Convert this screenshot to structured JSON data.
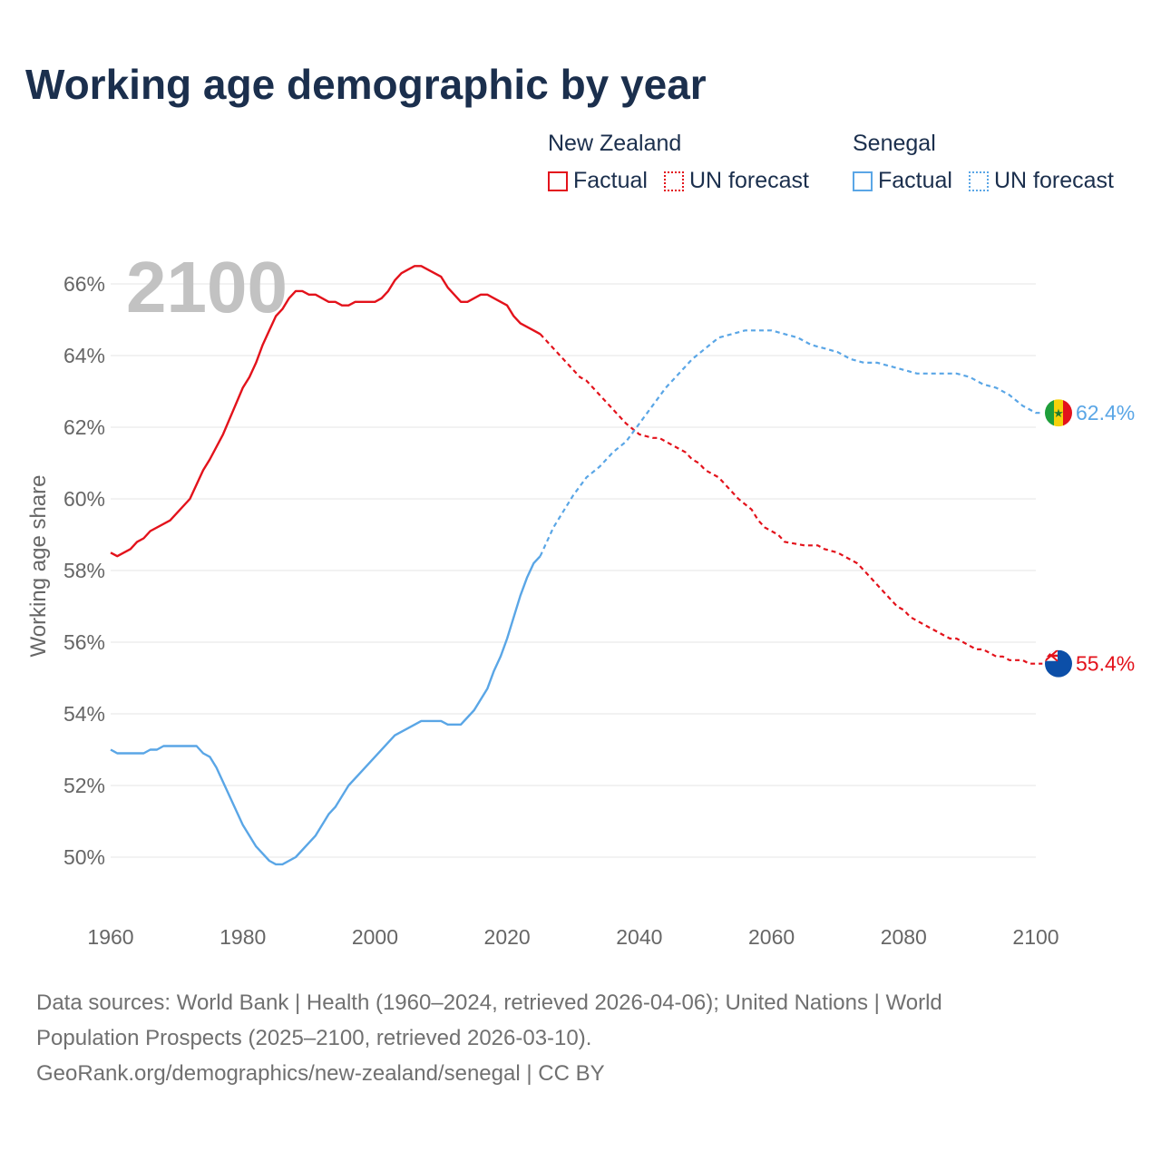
{
  "title": "Working age demographic by year",
  "legend": {
    "groups": [
      {
        "country": "New Zealand",
        "factual": "Factual",
        "forecast": "UN forecast",
        "color": "#e3121b"
      },
      {
        "country": "Senegal",
        "factual": "Factual",
        "forecast": "UN forecast",
        "color": "#5aa6e6"
      }
    ]
  },
  "footer": {
    "line1": "Data sources: World Bank | Health (1960–2024, retrieved 2026-04-06); United Nations | World",
    "line2": "Population Prospects (2025–2100, retrieved 2026-03-10).",
    "line3": "GeoRank.org/demographics/new-zealand/senegal | CC BY"
  },
  "chart_data": {
    "type": "line",
    "title": "Working age demographic by year",
    "ylabel": "Working age share",
    "xlabel": "",
    "year_watermark": "2100",
    "xlim": [
      1960,
      2100
    ],
    "ylim": [
      48,
      66.5
    ],
    "x_ticks": [
      1960,
      1980,
      2000,
      2020,
      2040,
      2060,
      2080,
      2100
    ],
    "x_tick_labels": [
      "1960",
      "1980",
      "2000",
      "2020",
      "2040",
      "2060",
      "2080",
      "2100"
    ],
    "y_ticks": [
      50,
      52,
      54,
      56,
      58,
      60,
      62,
      64,
      66
    ],
    "y_tick_labels": [
      "50%",
      "52%",
      "54%",
      "56%",
      "58%",
      "60%",
      "62%",
      "64%",
      "66%"
    ],
    "forecast_start": 2025,
    "series": [
      {
        "name": "New Zealand",
        "color": "#e3121b",
        "end_label": "55.4%",
        "flag": "nz",
        "points": [
          [
            1960,
            58.5
          ],
          [
            1961,
            58.4
          ],
          [
            1963,
            58.6
          ],
          [
            1964,
            58.8
          ],
          [
            1965,
            58.9
          ],
          [
            1966,
            59.1
          ],
          [
            1969,
            59.4
          ],
          [
            1972,
            60.0
          ],
          [
            1974,
            60.8
          ],
          [
            1975,
            61.1
          ],
          [
            1977,
            61.8
          ],
          [
            1980,
            63.1
          ],
          [
            1981,
            63.4
          ],
          [
            1982,
            63.8
          ],
          [
            1983,
            64.3
          ],
          [
            1984,
            64.7
          ],
          [
            1985,
            65.1
          ],
          [
            1986,
            65.3
          ],
          [
            1987,
            65.6
          ],
          [
            1988,
            65.8
          ],
          [
            1989,
            65.8
          ],
          [
            1990,
            65.7
          ],
          [
            1991,
            65.7
          ],
          [
            1993,
            65.5
          ],
          [
            1994,
            65.5
          ],
          [
            1995,
            65.4
          ],
          [
            1996,
            65.4
          ],
          [
            1997,
            65.5
          ],
          [
            2000,
            65.5
          ],
          [
            2001,
            65.6
          ],
          [
            2002,
            65.8
          ],
          [
            2003,
            66.1
          ],
          [
            2004,
            66.3
          ],
          [
            2005,
            66.4
          ],
          [
            2006,
            66.5
          ],
          [
            2007,
            66.5
          ],
          [
            2010,
            66.2
          ],
          [
            2011,
            65.9
          ],
          [
            2013,
            65.5
          ],
          [
            2014,
            65.5
          ],
          [
            2016,
            65.7
          ],
          [
            2017,
            65.7
          ],
          [
            2018,
            65.6
          ],
          [
            2020,
            65.4
          ],
          [
            2021,
            65.1
          ],
          [
            2022,
            64.9
          ],
          [
            2024,
            64.7
          ],
          [
            2025,
            64.6
          ],
          [
            2028,
            64.0
          ],
          [
            2030,
            63.6
          ],
          [
            2031,
            63.4
          ],
          [
            2032,
            63.3
          ],
          [
            2035,
            62.7
          ],
          [
            2038,
            62.1
          ],
          [
            2040,
            61.8
          ],
          [
            2042,
            61.7
          ],
          [
            2043,
            61.7
          ],
          [
            2045,
            61.5
          ],
          [
            2047,
            61.3
          ],
          [
            2048,
            61.1
          ],
          [
            2049,
            61.0
          ],
          [
            2050,
            60.8
          ],
          [
            2052,
            60.6
          ],
          [
            2055,
            60.0
          ],
          [
            2057,
            59.7
          ],
          [
            2058,
            59.4
          ],
          [
            2059,
            59.2
          ],
          [
            2061,
            59.0
          ],
          [
            2062,
            58.8
          ],
          [
            2065,
            58.7
          ],
          [
            2067,
            58.7
          ],
          [
            2068,
            58.6
          ],
          [
            2070,
            58.5
          ],
          [
            2073,
            58.2
          ],
          [
            2075,
            57.8
          ],
          [
            2077,
            57.4
          ],
          [
            2079,
            57.0
          ],
          [
            2080,
            56.9
          ],
          [
            2081,
            56.7
          ],
          [
            2083,
            56.5
          ],
          [
            2086,
            56.2
          ],
          [
            2087,
            56.1
          ],
          [
            2088,
            56.1
          ],
          [
            2090,
            55.9
          ],
          [
            2091,
            55.8
          ],
          [
            2092,
            55.8
          ],
          [
            2093,
            55.7
          ],
          [
            2094,
            55.6
          ],
          [
            2095,
            55.6
          ],
          [
            2096,
            55.5
          ],
          [
            2098,
            55.5
          ],
          [
            2099,
            55.4
          ],
          [
            2100,
            55.4
          ],
          [
            2101,
            55.4
          ]
        ]
      },
      {
        "name": "Senegal",
        "color": "#5aa6e6",
        "end_label": "62.4%",
        "flag": "sn",
        "points": [
          [
            1960,
            53.0
          ],
          [
            1961,
            52.9
          ],
          [
            1965,
            52.9
          ],
          [
            1966,
            53.0
          ],
          [
            1967,
            53.0
          ],
          [
            1968,
            53.1
          ],
          [
            1973,
            53.1
          ],
          [
            1974,
            52.9
          ],
          [
            1975,
            52.8
          ],
          [
            1976,
            52.5
          ],
          [
            1978,
            51.7
          ],
          [
            1980,
            50.9
          ],
          [
            1982,
            50.3
          ],
          [
            1984,
            49.9
          ],
          [
            1985,
            49.8
          ],
          [
            1986,
            49.8
          ],
          [
            1988,
            50.0
          ],
          [
            1990,
            50.4
          ],
          [
            1991,
            50.6
          ],
          [
            1993,
            51.2
          ],
          [
            1994,
            51.4
          ],
          [
            1996,
            52.0
          ],
          [
            1998,
            52.4
          ],
          [
            2000,
            52.8
          ],
          [
            2002,
            53.2
          ],
          [
            2003,
            53.4
          ],
          [
            2005,
            53.6
          ],
          [
            2007,
            53.8
          ],
          [
            2010,
            53.8
          ],
          [
            2011,
            53.7
          ],
          [
            2013,
            53.7
          ],
          [
            2015,
            54.1
          ],
          [
            2017,
            54.7
          ],
          [
            2018,
            55.2
          ],
          [
            2019,
            55.6
          ],
          [
            2020,
            56.1
          ],
          [
            2022,
            57.3
          ],
          [
            2023,
            57.8
          ],
          [
            2024,
            58.2
          ],
          [
            2025,
            58.4
          ],
          [
            2027,
            59.2
          ],
          [
            2029,
            59.8
          ],
          [
            2030,
            60.1
          ],
          [
            2032,
            60.6
          ],
          [
            2034,
            60.9
          ],
          [
            2036,
            61.3
          ],
          [
            2038,
            61.6
          ],
          [
            2040,
            62.1
          ],
          [
            2042,
            62.6
          ],
          [
            2044,
            63.1
          ],
          [
            2046,
            63.5
          ],
          [
            2048,
            63.9
          ],
          [
            2050,
            64.2
          ],
          [
            2052,
            64.5
          ],
          [
            2054,
            64.6
          ],
          [
            2056,
            64.7
          ],
          [
            2060,
            64.7
          ],
          [
            2062,
            64.6
          ],
          [
            2064,
            64.5
          ],
          [
            2066,
            64.3
          ],
          [
            2068,
            64.2
          ],
          [
            2070,
            64.1
          ],
          [
            2072,
            63.9
          ],
          [
            2074,
            63.8
          ],
          [
            2076,
            63.8
          ],
          [
            2078,
            63.7
          ],
          [
            2080,
            63.6
          ],
          [
            2082,
            63.5
          ],
          [
            2086,
            63.5
          ],
          [
            2088,
            63.5
          ],
          [
            2090,
            63.4
          ],
          [
            2092,
            63.2
          ],
          [
            2094,
            63.1
          ],
          [
            2096,
            62.9
          ],
          [
            2098,
            62.6
          ],
          [
            2100,
            62.4
          ],
          [
            2101,
            62.4
          ]
        ]
      }
    ]
  }
}
